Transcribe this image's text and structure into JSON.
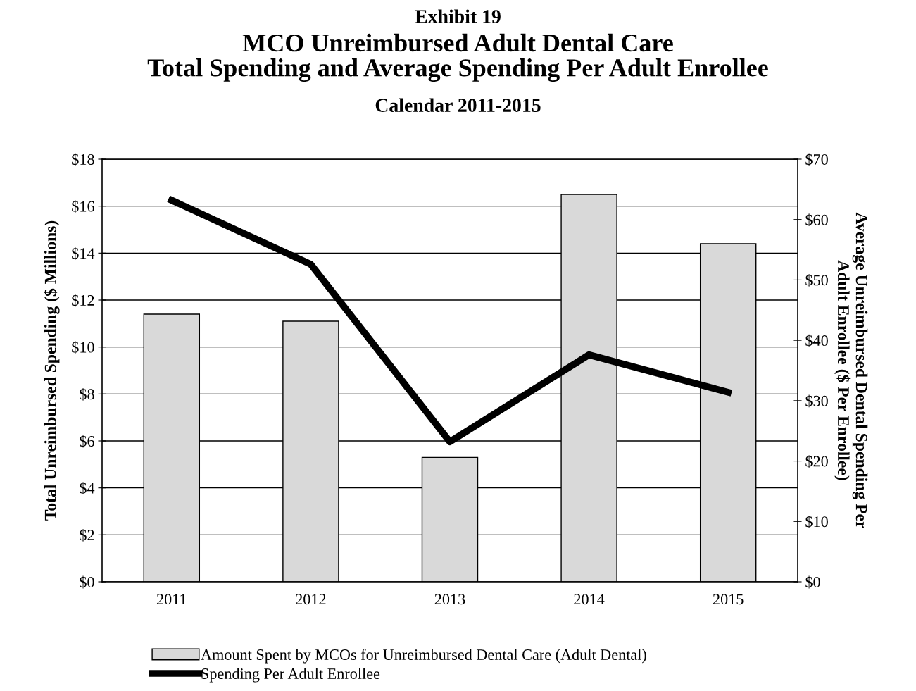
{
  "chart_data": {
    "type": "bar",
    "annotations": [
      "Exhibit 19"
    ],
    "title": "MCO Unreimbursed Adult Dental Care\nTotal Spending and Average Spending Per Adult Enrollee",
    "subtitle": "Calendar 2011-2015",
    "ylabel": "Total Unreimbursed Spending ($ Millions)",
    "y2label": "Average Unreimbursed Dental Spending Per\nAdult Enrollee ($ Per Enrollee)",
    "categories": [
      "2011",
      "2012",
      "2013",
      "2014",
      "2015"
    ],
    "series": [
      {
        "name": "Amount Spent by MCOs for Unreimbursed Dental Care (Adult Dental)",
        "color": "#d9d9d9",
        "values": [
          11.4,
          11.1,
          5.3,
          16.5,
          14.4
        ]
      },
      {
        "name": "Spending Per Adult Enrollee",
        "type": "line",
        "axis": "y2",
        "color": "#000000",
        "values": [
          63.2,
          52.6,
          23.2,
          37.6,
          31.4
        ]
      }
    ],
    "ylim": [
      0,
      18
    ],
    "yticks": [
      {
        "value": 0,
        "label": "$0"
      },
      {
        "value": 2,
        "label": "$2"
      },
      {
        "value": 4,
        "label": "$4"
      },
      {
        "value": 6,
        "label": "$6"
      },
      {
        "value": 8,
        "label": "$8"
      },
      {
        "value": 10,
        "label": "$10"
      },
      {
        "value": 12,
        "label": "$12"
      },
      {
        "value": 14,
        "label": "$14"
      },
      {
        "value": 16,
        "label": "$16"
      },
      {
        "value": 18,
        "label": "$18"
      }
    ],
    "y2lim": [
      0,
      70
    ],
    "y2ticks": [
      {
        "value": 0,
        "label": "$0"
      },
      {
        "value": 10,
        "label": "$10"
      },
      {
        "value": 20,
        "label": "$20"
      },
      {
        "value": 30,
        "label": "$30"
      },
      {
        "value": 40,
        "label": "$40"
      },
      {
        "value": 50,
        "label": "$50"
      },
      {
        "value": 60,
        "label": "$60"
      },
      {
        "value": 70,
        "label": "$70"
      }
    ],
    "grid": "y",
    "legend": "bottom",
    "marker": "none",
    "line_style": "solid"
  }
}
